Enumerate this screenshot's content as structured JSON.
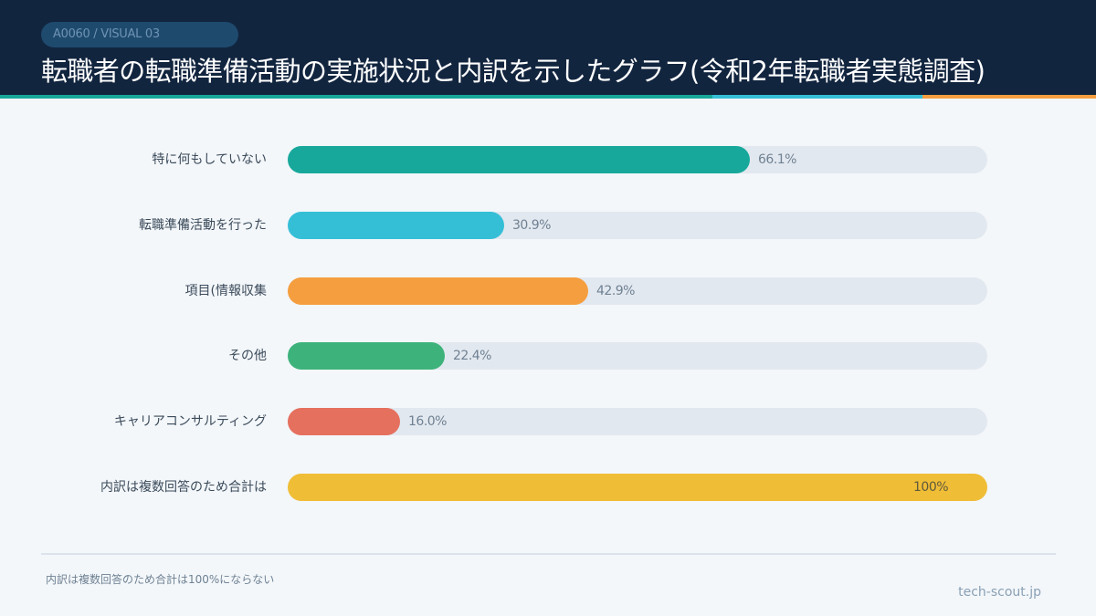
{
  "header": {
    "tag": "A0060 / VISUAL 03",
    "title": "転職者の転職準備活動の実施状況と内訳を示したグラフ(令和2年転職者実態調査)"
  },
  "colors": {
    "header_bg": "#12253f",
    "accent": [
      "#17a89b",
      "#35bfd7",
      "#f59e3f"
    ],
    "track": "#e2e8ef"
  },
  "chart_data": {
    "type": "bar",
    "orientation": "horizontal",
    "title": "転職者の転職準備活動の実施状況と内訳を示したグラフ(令和2年転職者実態調査)",
    "categories": [
      "特に何もしていない",
      "転職準備活動を行った",
      "項目(情報収集",
      "その他",
      "キャリアコンサルティング",
      "内訳は複数回答のため合計は"
    ],
    "values": [
      66.1,
      30.9,
      42.9,
      22.4,
      16.0,
      100
    ],
    "value_labels": [
      "66.1%",
      "30.9%",
      "42.9%",
      "22.4%",
      "16.0%",
      "100%"
    ],
    "bar_colors": [
      "#17a89b",
      "#35bfd7",
      "#f59e3f",
      "#3db37b",
      "#e5705e",
      "#f0bd36"
    ],
    "xlim": [
      0,
      100
    ],
    "grid": false
  },
  "footer": {
    "note": "内訳は複数回答のため合計は100%にならない",
    "source": "tech-scout.jp"
  }
}
